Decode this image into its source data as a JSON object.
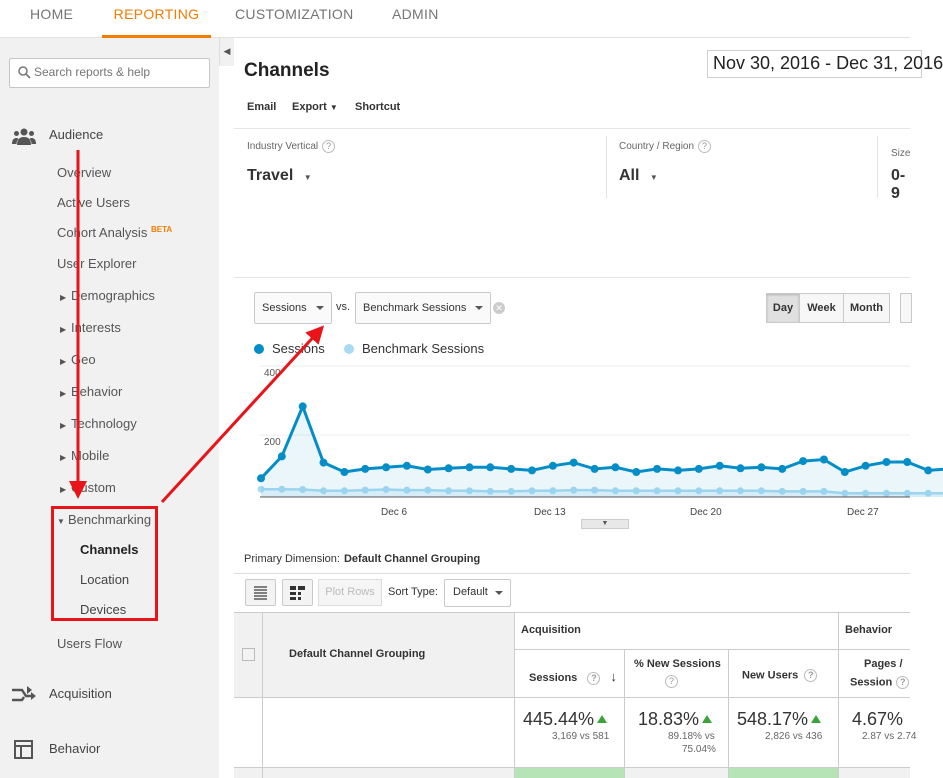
{
  "topnav": {
    "tabs": [
      {
        "label": "HOME"
      },
      {
        "label": "REPORTING"
      },
      {
        "label": "CUSTOMIZATION"
      },
      {
        "label": "ADMIN"
      }
    ]
  },
  "sidebar": {
    "search_placeholder": "Search reports & help",
    "audience": {
      "label": "Audience",
      "items": [
        {
          "label": "Overview"
        },
        {
          "label": "Active Users"
        },
        {
          "label": "Cohort Analysis",
          "badge": "BETA"
        },
        {
          "label": "User Explorer"
        },
        {
          "label": "Demographics"
        },
        {
          "label": "Interests"
        },
        {
          "label": "Geo"
        },
        {
          "label": "Behavior"
        },
        {
          "label": "Technology"
        },
        {
          "label": "Mobile"
        },
        {
          "label": "Custom"
        },
        {
          "label": "Benchmarking"
        }
      ],
      "benchmarking_sub": [
        {
          "label": "Channels"
        },
        {
          "label": "Location"
        },
        {
          "label": "Devices"
        }
      ],
      "users_flow": "Users Flow"
    },
    "acquisition": "Acquisition",
    "behavior": "Behavior"
  },
  "header": {
    "title": "Channels",
    "date_range": "Nov 30, 2016 - Dec 31, 2016",
    "toolbar": {
      "email": "Email",
      "export": "Export",
      "shortcut": "Shortcut"
    }
  },
  "filters": {
    "industry": {
      "label": "Industry Vertical",
      "value": "Travel"
    },
    "country": {
      "label": "Country / Region",
      "value": "All"
    },
    "size": {
      "label": "Size",
      "value": "0-9"
    }
  },
  "chart_controls": {
    "metric1": "Sessions",
    "vs": "vs.",
    "metric2": "Benchmark Sessions",
    "day": "Day",
    "week": "Week",
    "month": "Month"
  },
  "chart_data": {
    "type": "line",
    "y_ticks": [
      "400",
      "200"
    ],
    "ylim": [
      0,
      400
    ],
    "x_tick_labels": [
      "Dec 6",
      "Dec 13",
      "Dec 20",
      "Dec 27"
    ],
    "series": [
      {
        "name": "Sessions",
        "color": "#058dc7",
        "values": [
          60,
          130,
          290,
          110,
          80,
          90,
          95,
          100,
          88,
          92,
          95,
          95,
          90,
          85,
          100,
          110,
          90,
          95,
          80,
          90,
          85,
          90,
          100,
          92,
          95,
          90,
          115,
          120,
          80,
          100,
          112,
          112,
          85,
          90
        ]
      },
      {
        "name": "Benchmark Sessions",
        "color": "#a9dbf1",
        "values": [
          25,
          25,
          24,
          20,
          20,
          22,
          24,
          22,
          22,
          20,
          20,
          18,
          18,
          20,
          20,
          22,
          22,
          20,
          20,
          20,
          20,
          20,
          20,
          20,
          20,
          18,
          18,
          18,
          12,
          12,
          12,
          12,
          12,
          12
        ]
      }
    ]
  },
  "primary_dimension": {
    "label": "Primary Dimension:",
    "value": "Default Channel Grouping"
  },
  "table_controls": {
    "plot_rows": "Plot Rows",
    "sort_type_label": "Sort Type:",
    "sort_type": "Default"
  },
  "table": {
    "dimension_header": "Default Channel Grouping",
    "group_acquisition": "Acquisition",
    "group_behavior": "Behavior",
    "columns": [
      {
        "label": "Sessions",
        "value": "445.44%",
        "detail": "3,169 vs 581"
      },
      {
        "label": "% New Sessions",
        "value": "18.83%",
        "detail1": "89.18% vs",
        "detail2": "75.04%"
      },
      {
        "label": "New Users",
        "value": "548.17%",
        "detail": "2,826 vs 436"
      },
      {
        "label1": "Pages /",
        "label2": "Session",
        "value": "4.67%",
        "detail": "2.87 vs 2.74"
      }
    ]
  }
}
